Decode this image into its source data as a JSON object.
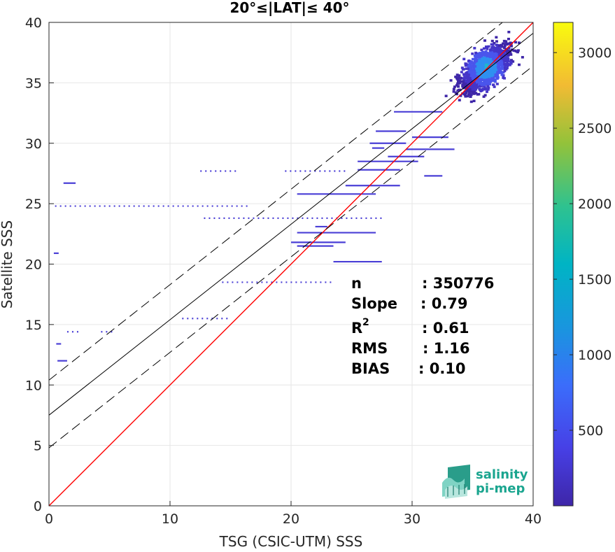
{
  "chart_data": {
    "type": "heatmap",
    "title": "20°≤|LAT|≤ 40°",
    "xlabel": "TSG (CSIC-UTM) SSS",
    "ylabel": "Satellite SSS",
    "xlim": [
      0,
      40
    ],
    "ylim": [
      0,
      40
    ],
    "xticks": [
      "0",
      "10",
      "20",
      "30",
      "40"
    ],
    "yticks": [
      "0",
      "5",
      "10",
      "15",
      "20",
      "25",
      "30",
      "35",
      "40"
    ],
    "grid": true,
    "colorbar": {
      "range": [
        0,
        3200
      ],
      "ticks": [
        "500",
        "1000",
        "1500",
        "2000",
        "2500",
        "3000"
      ],
      "colormap": "parula"
    },
    "lines": [
      {
        "role": "one-to-one",
        "color": "#ff0000",
        "style": "solid",
        "slope": 1.0,
        "intercept": 0.0
      },
      {
        "role": "regression",
        "color": "#000000",
        "style": "solid",
        "slope": 0.79,
        "intercept": 7.5
      },
      {
        "role": "regression-upper",
        "color": "#000000",
        "style": "dashed",
        "slope": 0.79,
        "intercept": 10.4
      },
      {
        "role": "regression-lower",
        "color": "#000000",
        "style": "dashed",
        "slope": 0.79,
        "intercept": 4.8
      }
    ],
    "density_core": {
      "center": [
        36.0,
        36.2
      ],
      "peak": 3200
    },
    "segments": [
      {
        "x0": 0.5,
        "x1": 16.5,
        "y": 24.8,
        "dotted": true
      },
      {
        "x0": 1.2,
        "x1": 2.2,
        "y": 26.7,
        "dotted": false
      },
      {
        "x0": 0.4,
        "x1": 0.8,
        "y": 20.9,
        "dotted": false
      },
      {
        "x0": 0.6,
        "x1": 1.0,
        "y": 13.4,
        "dotted": false
      },
      {
        "x0": 0.7,
        "x1": 1.5,
        "y": 12.0,
        "dotted": false
      },
      {
        "x0": 1.5,
        "x1": 2.5,
        "y": 14.4,
        "dotted": true
      },
      {
        "x0": 4.3,
        "x1": 5.3,
        "y": 14.4,
        "dotted": true
      },
      {
        "x0": 11.0,
        "x1": 15.0,
        "y": 15.5,
        "dotted": true
      },
      {
        "x0": 14.3,
        "x1": 23.5,
        "y": 18.5,
        "dotted": true
      },
      {
        "x0": 12.5,
        "x1": 15.5,
        "y": 27.7,
        "dotted": true
      },
      {
        "x0": 19.5,
        "x1": 24.5,
        "y": 27.7,
        "dotted": true
      },
      {
        "x0": 25.5,
        "x1": 29.0,
        "y": 27.8,
        "dotted": false
      },
      {
        "x0": 12.8,
        "x1": 27.5,
        "y": 23.8,
        "dotted": true
      },
      {
        "x0": 20.5,
        "x1": 27.0,
        "y": 25.8,
        "dotted": false
      },
      {
        "x0": 20.5,
        "x1": 27.0,
        "y": 22.6,
        "dotted": false
      },
      {
        "x0": 20.0,
        "x1": 24.5,
        "y": 21.8,
        "dotted": false
      },
      {
        "x0": 20.5,
        "x1": 23.5,
        "y": 21.5,
        "dotted": false
      },
      {
        "x0": 23.5,
        "x1": 27.5,
        "y": 20.2,
        "dotted": false
      },
      {
        "x0": 24.5,
        "x1": 29.0,
        "y": 26.5,
        "dotted": false
      },
      {
        "x0": 25.5,
        "x1": 30.5,
        "y": 28.5,
        "dotted": false
      },
      {
        "x0": 28.0,
        "x1": 31.0,
        "y": 28.9,
        "dotted": false
      },
      {
        "x0": 29.5,
        "x1": 33.5,
        "y": 29.5,
        "dotted": false
      },
      {
        "x0": 28.5,
        "x1": 32.5,
        "y": 32.6,
        "dotted": false
      },
      {
        "x0": 27.0,
        "x1": 29.5,
        "y": 31.0,
        "dotted": false
      },
      {
        "x0": 26.5,
        "x1": 29.5,
        "y": 30.0,
        "dotted": false
      },
      {
        "x0": 30.0,
        "x1": 33.0,
        "y": 30.5,
        "dotted": false
      },
      {
        "x0": 31.0,
        "x1": 32.5,
        "y": 27.3,
        "dotted": false
      },
      {
        "x0": 22.0,
        "x1": 23.0,
        "y": 23.1,
        "dotted": false
      },
      {
        "x0": 26.7,
        "x1": 27.7,
        "y": 29.6,
        "dotted": false
      }
    ]
  },
  "stats": {
    "n_label": "n",
    "n_value": ": 350776",
    "slope_label": "Slope",
    "slope_value": ": 0.79",
    "r2_label": "R",
    "r2_sup": "2",
    "r2_value": ": 0.61",
    "rms_label": "RMS",
    "rms_value": ": 1.16",
    "bias_label": "BIAS",
    "bias_value": ": 0.10"
  },
  "logo": {
    "line1": "salinity",
    "line2": "pi-mep",
    "color": "#1aa58f"
  }
}
